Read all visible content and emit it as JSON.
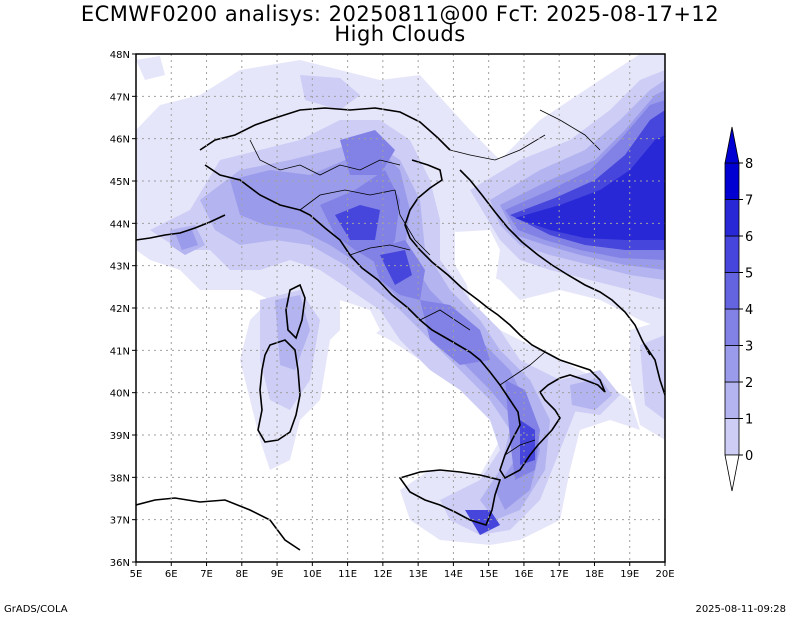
{
  "title_line1": "ECMWF0200 analisys: 20250811@00 FcT: 2025-08-17+12",
  "title_line2": "High Clouds",
  "lon_labels": [
    "5E",
    "6E",
    "7E",
    "8E",
    "9E",
    "10E",
    "11E",
    "12E",
    "13E",
    "14E",
    "15E",
    "16E",
    "17E",
    "18E",
    "19E",
    "20E"
  ],
  "lat_labels": [
    "48N",
    "47N",
    "46N",
    "45N",
    "44N",
    "43N",
    "42N",
    "41N",
    "40N",
    "39N",
    "38N",
    "37N",
    "36N"
  ],
  "colorbar": {
    "labels": [
      "0",
      "1",
      "2",
      "3",
      "4",
      "5",
      "6",
      "7",
      "8"
    ],
    "colors": [
      "#e6e6fa",
      "#cdcdf5",
      "#b4b4f0",
      "#9b9beb",
      "#8282e6",
      "#6464e1",
      "#4646dc",
      "#2828d7",
      "#0000d2"
    ]
  },
  "footer_left": "GrADS/COLA",
  "footer_right": "2025-08-11-09:28"
}
